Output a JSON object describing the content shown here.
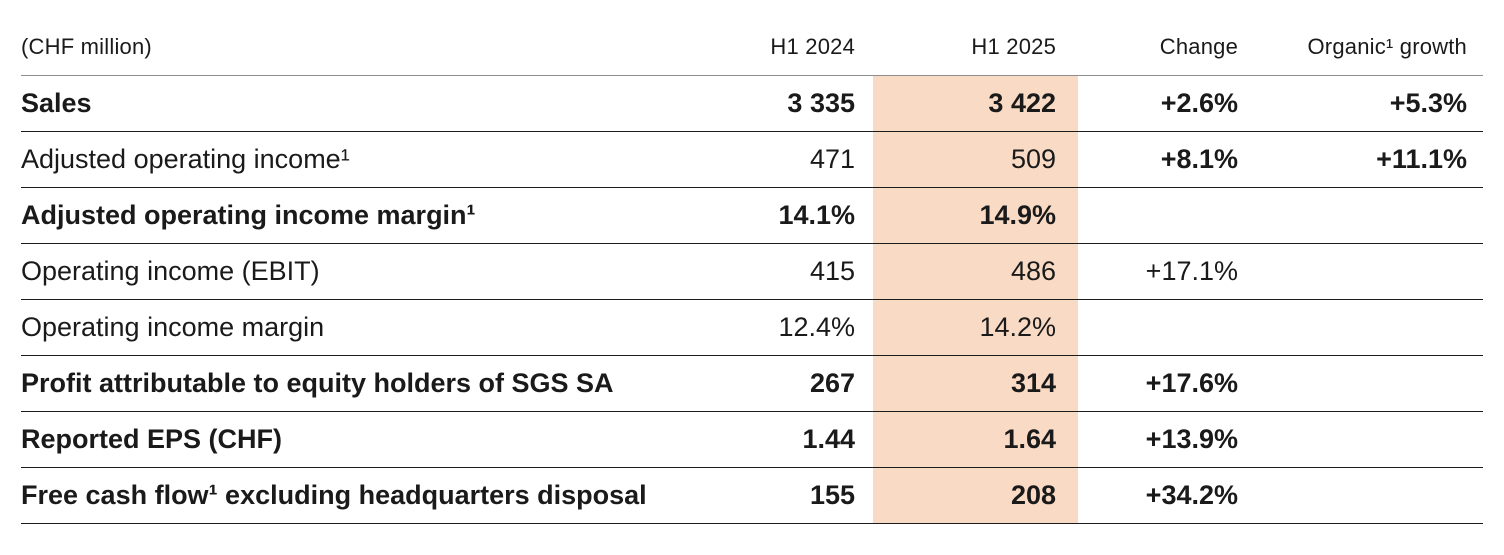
{
  "colors": {
    "highlight_band": "#f9dbc5",
    "header_rule": "#8e8e8e",
    "row_rule": "#1c1c1c",
    "text": "#1a1a1a"
  },
  "table": {
    "unit_label": "(CHF million)",
    "columns": {
      "h1_2024": "H1 2024",
      "h1_2025": "H1 2025",
      "change": "Change",
      "organic": "Organic¹ growth"
    },
    "rows": [
      {
        "label": "Sales",
        "h1_2024": "3 335",
        "h1_2025": "3 422",
        "change": "+2.6%",
        "organic": "+5.3%"
      },
      {
        "label": "Adjusted operating income¹",
        "h1_2024": "471",
        "h1_2025": "509",
        "change": "+8.1%",
        "organic": "+11.1%"
      },
      {
        "label": "Adjusted operating income margin¹",
        "h1_2024": "14.1%",
        "h1_2025": "14.9%",
        "change": "",
        "organic": ""
      },
      {
        "label": "Operating income (EBIT)",
        "h1_2024": "415",
        "h1_2025": "486",
        "change": "+17.1%",
        "organic": ""
      },
      {
        "label": "Operating income margin",
        "h1_2024": "12.4%",
        "h1_2025": "14.2%",
        "change": "",
        "organic": ""
      },
      {
        "label": "Profit attributable to equity holders of SGS SA",
        "h1_2024": "267",
        "h1_2025": "314",
        "change": "+17.6%",
        "organic": ""
      },
      {
        "label": "Reported EPS (CHF)",
        "h1_2024": "1.44",
        "h1_2025": "1.64",
        "change": "+13.9%",
        "organic": ""
      },
      {
        "label": "Free cash flow¹ excluding headquarters disposal",
        "h1_2024": "155",
        "h1_2025": "208",
        "change": "+34.2%",
        "organic": ""
      }
    ]
  }
}
